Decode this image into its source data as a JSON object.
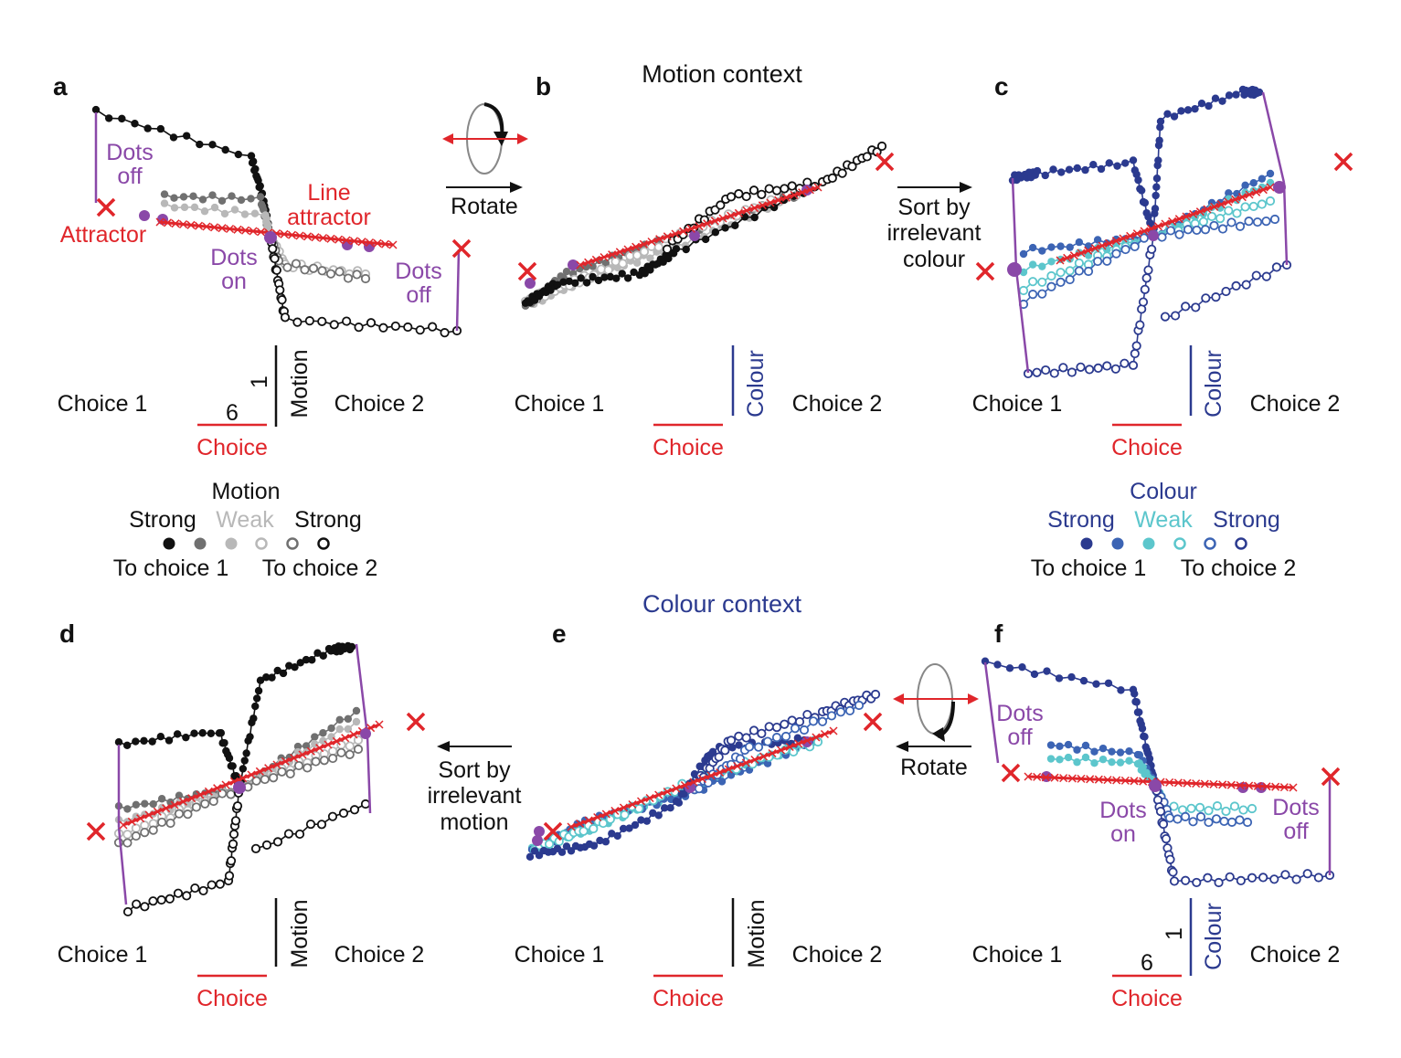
{
  "contexts": {
    "motion": "Motion context",
    "colour": "Colour context"
  },
  "panel_letters": [
    "a",
    "b",
    "c",
    "d",
    "e",
    "f"
  ],
  "axis": {
    "choice1": "Choice 1",
    "choice2": "Choice 2",
    "choice": "Choice",
    "motion": "Motion",
    "colour": "Colour",
    "scale_choice": "6",
    "scale_vert": "1"
  },
  "annotations": {
    "dots_off": [
      "Dots",
      "off"
    ],
    "dots_on": [
      "Dots",
      "on"
    ],
    "attractor": "Attractor",
    "line_attractor": [
      "Line",
      "attractor"
    ],
    "rotate": "Rotate",
    "sort_colour": [
      "Sort by",
      "irrelevant",
      "colour"
    ],
    "sort_motion": [
      "Sort by",
      "irrelevant",
      "motion"
    ]
  },
  "legend_motion": {
    "title": "Motion",
    "strong": "Strong",
    "weak": "Weak",
    "to1": "To choice 1",
    "to2": "To choice 2"
  },
  "legend_colour": {
    "title": "Colour",
    "strong": "Strong",
    "weak": "Weak",
    "to1": "To choice 1",
    "to2": "To choice 2"
  },
  "colors": {
    "red": "#e0262b",
    "purple": "#8a48a8",
    "blue_dark": "#2b3a8f",
    "blue_mid": "#3c64b4",
    "cyan": "#5cc6cc",
    "black": "#111111",
    "gray_dark": "#707070",
    "gray_light": "#b8b8b8"
  }
}
